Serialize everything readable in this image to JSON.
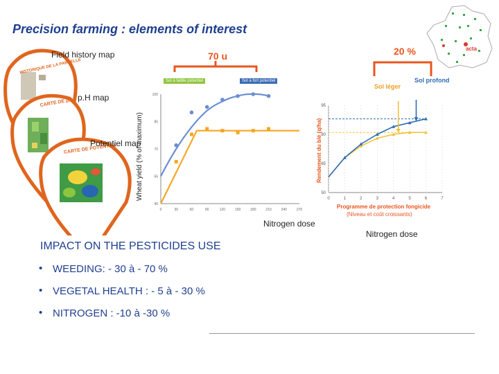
{
  "slide": {
    "title": "Precision farming : elements of interest",
    "field_history_label": "Field history map",
    "ph_map_label": "p.H map",
    "potential_map_label": "Potentiel map",
    "pin_labels": [
      "HISTORIQUE DE LA PARCELLE",
      "CARTE DE pH",
      "CARTE DE POTENTIEL"
    ],
    "callout_left": "70 u",
    "callout_right": "20 %",
    "left_tags": [
      "Sol à faible potentiel",
      "Sol à fort potentiel"
    ],
    "right_tags": [
      "Sol léger",
      "Sol profond"
    ],
    "left_ylabel": "Wheat yield (% of maximum)",
    "left_xlabel": "Nitrogen dose",
    "right_ylabel": "Rendement du blé (q/ha)",
    "right_xlabel_line1": "Programme de protection fongicide",
    "right_xlabel_line2": "(Niveau et coût croissants)",
    "right_caption": "Nitrogen dose",
    "impact_heading": "IMPACT ON THE PESTICIDES USE",
    "bullets": [
      "WEEDING: - 30 à - 70 %",
      "VEGETAL HEALTH : - 5 à - 30 %",
      "NITROGEN : -10 à -30 %"
    ],
    "map_logo": "acta"
  },
  "chart_data": [
    {
      "type": "line",
      "xlabel": "Nitrogen dose",
      "ylabel": "Wheat yield (% of maximum)",
      "x_ticks": [
        0,
        30,
        60,
        90,
        120,
        150,
        180,
        210,
        240,
        270
      ],
      "y_ticks": [
        40,
        55,
        70,
        85,
        100
      ],
      "xlim": [
        0,
        270
      ],
      "ylim": [
        40,
        100
      ],
      "series": [
        {
          "name": "Sol à faible potentiel",
          "color": "#f5a623",
          "x": [
            0,
            70,
            270
          ],
          "y": [
            40,
            80,
            80
          ],
          "style": "segmented"
        },
        {
          "name": "Sol à fort potentiel",
          "color": "#6a8fd1",
          "x": [
            0,
            30,
            60,
            90,
            120,
            150,
            180,
            210
          ],
          "y": [
            55,
            70,
            82,
            91,
            96,
            99,
            100,
            99
          ],
          "style": "curve"
        }
      ],
      "points": [
        {
          "series": 1,
          "x": [
            30,
            60,
            90,
            120,
            150,
            180,
            210
          ],
          "y": [
            72,
            90,
            93,
            97,
            99,
            100,
            99
          ]
        },
        {
          "series": 0,
          "x": [
            30,
            60,
            90,
            120,
            150,
            180,
            210
          ],
          "y": [
            63,
            78,
            81,
            80,
            79,
            80,
            81
          ]
        }
      ]
    },
    {
      "type": "line",
      "xlabel": "Programme de protection fongicide",
      "ylabel": "Rendement du blé (q/ha)",
      "x_ticks": [
        0,
        1,
        2,
        3,
        4,
        5,
        6,
        7
      ],
      "y_ticks": [
        50,
        65,
        80,
        95
      ],
      "xlim": [
        0,
        7
      ],
      "ylim": [
        50,
        95
      ],
      "series": [
        {
          "name": "Sol léger",
          "color": "#f0c23b",
          "x": [
            0,
            1,
            2,
            3,
            4,
            5,
            6
          ],
          "y": [
            58,
            68,
            74,
            78,
            80,
            81,
            81
          ]
        },
        {
          "name": "Sol profond",
          "color": "#2d6db5",
          "x": [
            0,
            1,
            2,
            3,
            4,
            5,
            6
          ],
          "y": [
            58,
            68,
            75,
            80,
            84,
            86,
            88
          ]
        }
      ]
    }
  ]
}
